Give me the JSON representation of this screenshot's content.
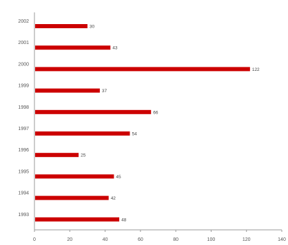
{
  "chart_data": {
    "type": "bar",
    "orientation": "horizontal",
    "categories": [
      "2002",
      "2001",
      "2000",
      "1999",
      "1998",
      "1997",
      "1996",
      "1995",
      "1994",
      "1993"
    ],
    "values": [
      30,
      43,
      122,
      37,
      66,
      54,
      25,
      45,
      42,
      48
    ],
    "data_labels": [
      "30",
      "43",
      "122",
      "37",
      "66",
      "54",
      "25",
      "45",
      "42",
      "48"
    ],
    "xticks": [
      0,
      20,
      40,
      60,
      80,
      100,
      120,
      140
    ],
    "xlim": [
      0,
      140
    ],
    "grid": false,
    "legend": "none",
    "bar_color": "#cc0000",
    "title": "",
    "xlabel": "",
    "ylabel": ""
  }
}
